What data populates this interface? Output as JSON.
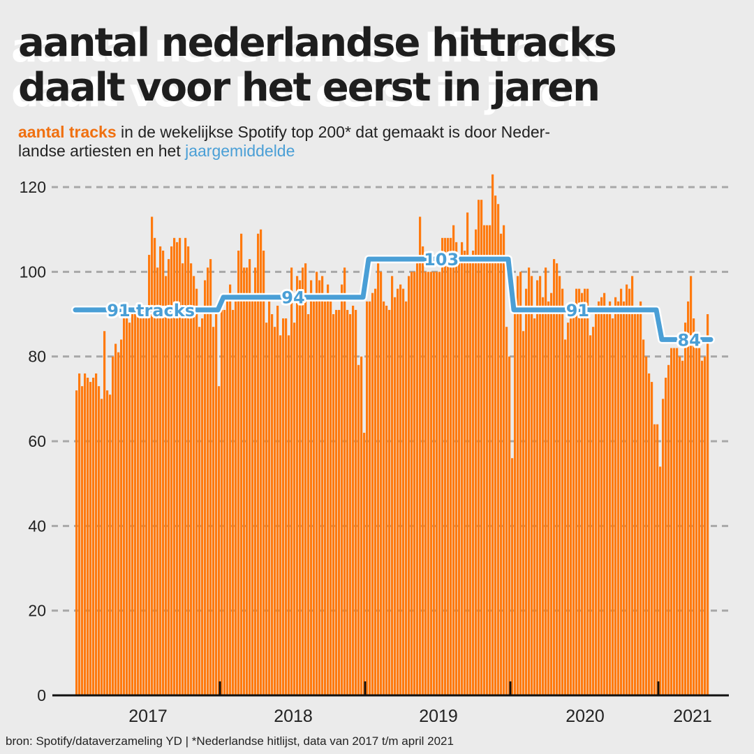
{
  "title": {
    "line1": "aantal nederlandse hittracks",
    "line2": "daalt voor het eerst in jaren"
  },
  "subtitle": {
    "highlight_tracks": "aantal tracks",
    "text_part1": " in de wekelijkse Spotify top 200* dat gemaakt is door Neder-",
    "text_part2": "landse artiesten en het ",
    "highlight_average": "jaargemiddelde"
  },
  "footer": "bron: Spotify/dataverzameling YD | *Nederlandse hitlijst, data van 2017 t/m april 2021",
  "colors": {
    "bar": "#ff7a0e",
    "average_line": "#4a9fd6",
    "background": "#ebebeb",
    "grid": "#a8a8a8"
  },
  "chart_data": {
    "type": "bar",
    "title": "aantal nederlandse hittracks daalt voor het eerst in jaren",
    "xlabel": "",
    "ylabel": "aantal tracks",
    "ylim": [
      0,
      120
    ],
    "yticks": [
      0,
      20,
      40,
      60,
      80,
      100,
      120
    ],
    "grid": true,
    "x_tick_labels": [
      "2017",
      "2018",
      "2019",
      "2020",
      "2021"
    ],
    "series": [
      {
        "name": "aantal tracks (wekelijks)",
        "values": [
          72,
          76,
          73,
          76,
          75,
          74,
          75,
          76,
          73,
          70,
          86,
          72,
          71,
          80,
          83,
          81,
          84,
          90,
          90,
          88,
          90,
          91,
          90,
          90,
          90,
          92,
          104,
          113,
          108,
          101,
          106,
          105,
          99,
          103,
          106,
          108,
          107,
          108,
          102,
          108,
          106,
          102,
          99,
          96,
          87,
          89,
          98,
          101,
          103,
          87,
          90,
          73,
          91,
          91,
          93,
          97,
          91,
          93,
          105,
          109,
          101,
          101,
          103,
          95,
          101,
          109,
          110,
          105,
          88,
          93,
          90,
          87,
          92,
          85,
          89,
          89,
          85,
          101,
          88,
          99,
          98,
          101,
          102,
          90,
          98,
          93,
          100,
          98,
          99,
          93,
          97,
          93,
          90,
          91,
          91,
          97,
          101,
          91,
          90,
          92,
          91,
          78,
          80,
          62,
          93,
          93,
          95,
          96,
          102,
          100,
          93,
          92,
          91,
          99,
          94,
          96,
          97,
          96,
          93,
          99,
          100,
          100,
          102,
          113,
          106,
          100,
          100,
          100,
          100,
          100,
          100,
          108,
          108,
          108,
          108,
          111,
          107,
          103,
          107,
          105,
          114,
          104,
          105,
          110,
          117,
          117,
          111,
          111,
          111,
          123,
          118,
          116,
          109,
          111,
          87,
          80,
          56,
          92,
          99,
          100,
          86,
          96,
          101,
          99,
          89,
          98,
          99,
          94,
          101,
          93,
          95,
          103,
          102,
          99,
          96,
          84,
          88,
          90,
          90,
          96,
          96,
          95,
          96,
          96,
          85,
          87,
          92,
          93,
          94,
          95,
          91,
          93,
          89,
          94,
          93,
          96,
          93,
          97,
          96,
          99,
          91,
          91,
          93,
          84,
          80,
          76,
          74,
          64,
          64,
          54,
          70,
          75,
          78,
          82,
          82,
          82,
          80,
          79,
          88,
          93,
          99,
          89,
          82,
          82,
          79,
          80,
          90
        ],
        "year_start_index": {
          "2017": 0,
          "2018": 52,
          "2019": 104,
          "2020": 156,
          "2021": 209
        }
      },
      {
        "name": "jaargemiddelde",
        "type": "step",
        "categories": [
          "2017",
          "2018",
          "2019",
          "2020",
          "2021"
        ],
        "values": [
          91,
          94,
          103,
          91,
          84
        ]
      }
    ],
    "annotations": [
      "91 tracks",
      "94",
      "103",
      "91",
      "84"
    ]
  }
}
